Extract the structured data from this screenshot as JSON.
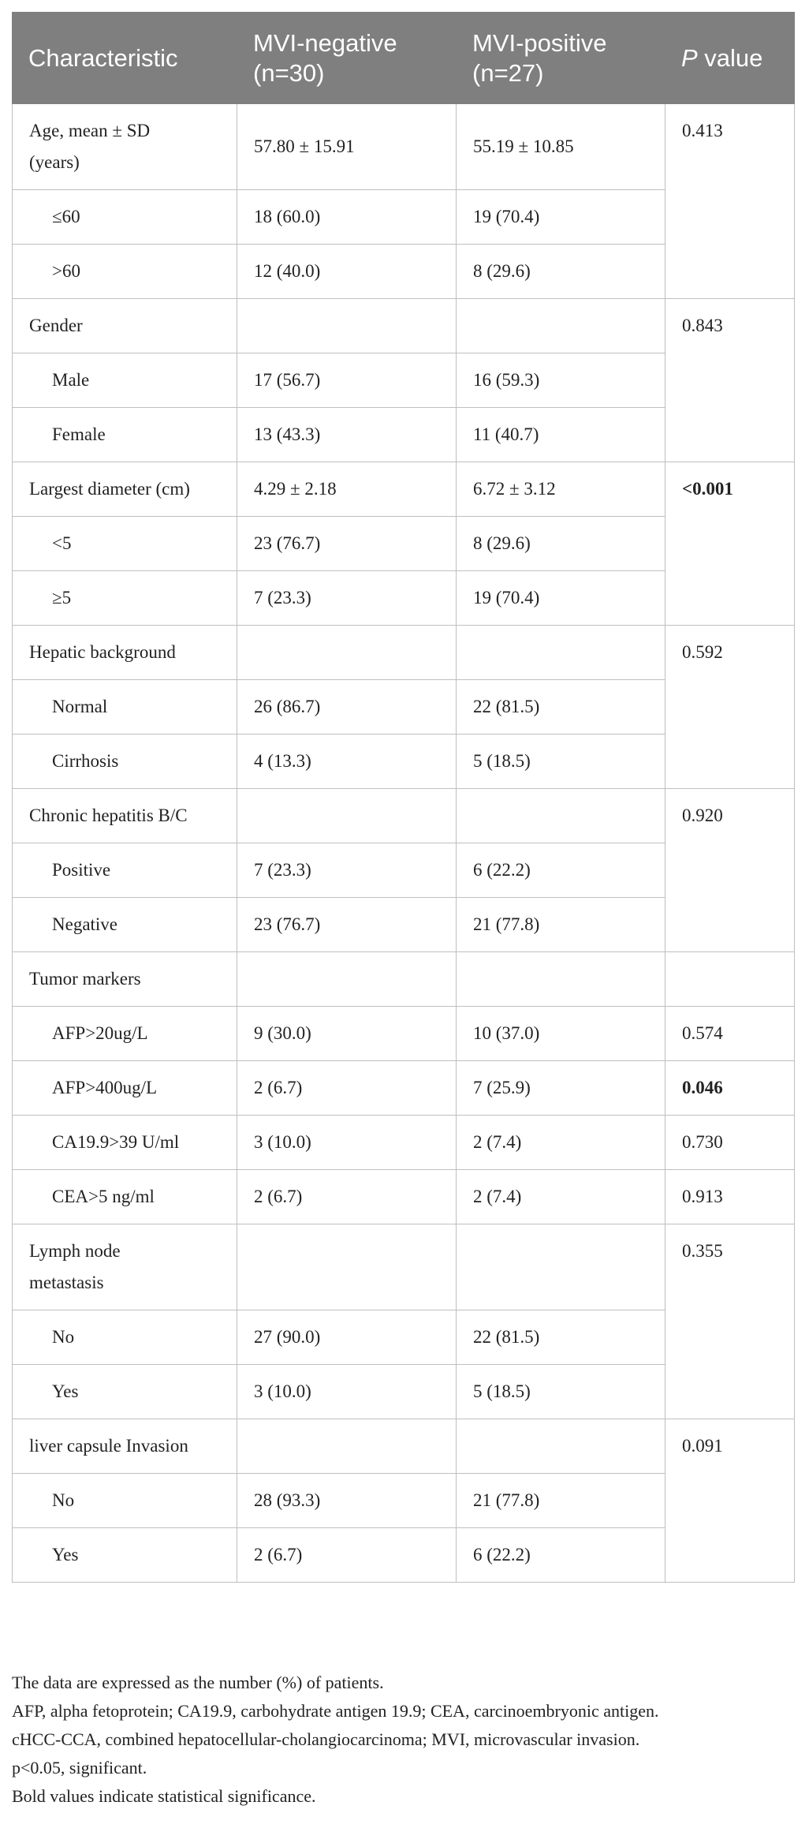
{
  "table": {
    "header": [
      "Characteristic",
      "MVI-negative (n=30)",
      "MVI-positive (n=27)",
      "P value"
    ],
    "groups": [
      {
        "rows": [
          {
            "cells": [
              "Age, mean ± SD (years)",
              "57.80 ± 15.91",
              "55.19 ± 10.85"
            ],
            "sub": false
          },
          {
            "cells": [
              "≤60",
              "18 (60.0)",
              "19 (70.4)"
            ],
            "sub": true
          },
          {
            "cells": [
              ">60",
              "12 (40.0)",
              "8 (29.6)"
            ],
            "sub": true
          }
        ],
        "p_value": "0.413",
        "bold": false
      },
      {
        "rows": [
          {
            "cells": [
              "Gender",
              null,
              null
            ],
            "sub": false
          },
          {
            "cells": [
              "Male",
              "17 (56.7)",
              "16 (59.3)"
            ],
            "sub": true
          },
          {
            "cells": [
              "Female",
              "13 (43.3)",
              "11 (40.7)"
            ],
            "sub": true
          }
        ],
        "p_value": "0.843",
        "bold": false
      },
      {
        "rows": [
          {
            "cells": [
              "Largest diameter (cm)",
              "4.29 ± 2.18",
              "6.72 ± 3.12"
            ],
            "sub": false
          },
          {
            "cells": [
              "<5",
              "23 (76.7)",
              "8 (29.6)"
            ],
            "sub": true
          },
          {
            "cells": [
              "≥5",
              "7 (23.3)",
              "19 (70.4)"
            ],
            "sub": true
          }
        ],
        "p_value": "<0.001",
        "bold": true
      },
      {
        "rows": [
          {
            "cells": [
              "Hepatic background",
              null,
              null
            ],
            "sub": false
          },
          {
            "cells": [
              "Normal",
              "26 (86.7)",
              "22 (81.5)"
            ],
            "sub": true
          },
          {
            "cells": [
              "Cirrhosis",
              "4 (13.3)",
              "5 (18.5)"
            ],
            "sub": true
          }
        ],
        "p_value": "0.592",
        "bold": false
      },
      {
        "rows": [
          {
            "cells": [
              "Chronic hepatitis B/C",
              null,
              null
            ],
            "sub": false
          },
          {
            "cells": [
              "Positive",
              "7 (23.3)",
              "6 (22.2)"
            ],
            "sub": true
          },
          {
            "cells": [
              "Negative",
              "23 (76.7)",
              "21 (77.8)"
            ],
            "sub": true
          }
        ],
        "p_value": "0.920",
        "bold": false
      },
      {
        "rows": [
          {
            "cells": [
              "Tumor markers",
              null,
              null
            ],
            "sub": false
          }
        ],
        "p_value": null,
        "bold": false
      },
      {
        "rows": [
          {
            "cells": [
              "AFP>20ug/L",
              "9 (30.0)",
              "10 (37.0)"
            ],
            "sub": true
          }
        ],
        "p_value": "0.574",
        "bold": false
      },
      {
        "rows": [
          {
            "cells": [
              "AFP>400ug/L",
              "2 (6.7)",
              "7 (25.9)"
            ],
            "sub": true
          }
        ],
        "p_value": "0.046",
        "bold": true
      },
      {
        "rows": [
          {
            "cells": [
              "CA19.9>39 U/ml",
              "3 (10.0)",
              "2 (7.4)"
            ],
            "sub": true
          }
        ],
        "p_value": "0.730",
        "bold": false
      },
      {
        "rows": [
          {
            "cells": [
              "CEA>5 ng/ml",
              "2 (6.7)",
              "2 (7.4)"
            ],
            "sub": true
          }
        ],
        "p_value": "0.913",
        "bold": false
      },
      {
        "rows": [
          {
            "cells": [
              "Lymph node metastasis",
              null,
              null
            ],
            "sub": false
          },
          {
            "cells": [
              "No",
              "27 (90.0)",
              "22 (81.5)"
            ],
            "sub": true
          },
          {
            "cells": [
              "Yes",
              "3 (10.0)",
              "5 (18.5)"
            ],
            "sub": true
          }
        ],
        "p_value": "0.355",
        "bold": false
      },
      {
        "rows": [
          {
            "cells": [
              "liver capsule Invasion",
              null,
              null
            ],
            "sub": false
          },
          {
            "cells": [
              "No",
              "28 (93.3)",
              "21 (77.8)"
            ],
            "sub": true
          },
          {
            "cells": [
              "Yes",
              "2 (6.7)",
              "6 (22.2)"
            ],
            "sub": true
          }
        ],
        "p_value": "0.091",
        "bold": false
      }
    ]
  },
  "footnotes": [
    "The data are expressed as the number (%) of patients.",
    "AFP, alpha fetoprotein; CA19.9, carbohydrate antigen 19.9; CEA, carcinoembryonic antigen.",
    "cHCC-CCA, combined hepatocellular-cholangiocarcinoma; MVI, microvascular invasion.",
    "p<0.05, significant.",
    "Bold values indicate statistical significance."
  ]
}
